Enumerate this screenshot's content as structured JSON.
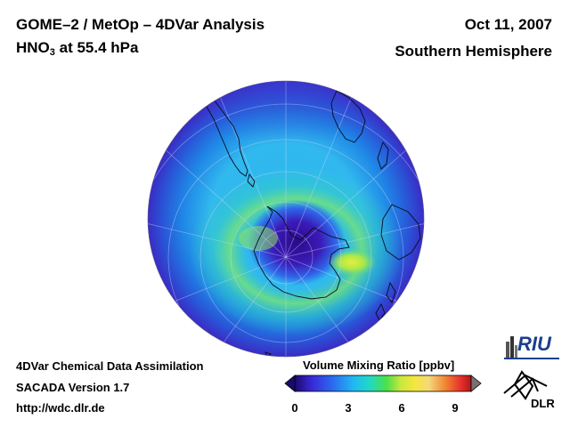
{
  "header": {
    "title": "GOME–2 / MetOp – 4DVar Analysis",
    "species_prefix": "HNO",
    "species_sub": "3",
    "species_suffix": " at 55.4 hPa",
    "date": "Oct 11, 2007",
    "region": "Southern Hemisphere"
  },
  "footer": {
    "line1": "4DVar Chemical Data Assimilation",
    "line2": "SACADA Version 1.7",
    "line3": "http://wdc.dlr.de"
  },
  "colorbar": {
    "title": "Volume Mixing Ratio [ppbv]",
    "ticks": [
      "0",
      "3",
      "6",
      "9"
    ],
    "colors": [
      "#1a0a6e",
      "#3a2ad8",
      "#2a6ef0",
      "#22b6f2",
      "#20d8c8",
      "#4be04b",
      "#c8e83a",
      "#f4e640",
      "#f4a83a",
      "#e83030",
      "#b01818"
    ]
  },
  "logos": {
    "riu": "RIU",
    "dlr": "DLR"
  }
}
